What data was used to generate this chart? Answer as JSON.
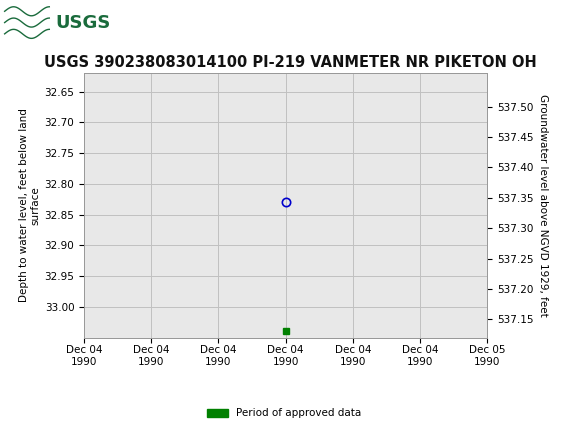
{
  "title": "USGS 390238083014100 PI-219 VANMETER NR PIKETON OH",
  "ylabel_left": "Depth to water level, feet below land\nsurface",
  "ylabel_right": "Groundwater level above NGVD 1929, feet",
  "ylim_left": [
    33.05,
    32.62
  ],
  "ylim_right": [
    537.12,
    537.555
  ],
  "yticks_left": [
    32.65,
    32.7,
    32.75,
    32.8,
    32.85,
    32.9,
    32.95,
    33.0
  ],
  "yticks_right": [
    537.15,
    537.2,
    537.25,
    537.3,
    537.35,
    537.4,
    537.45,
    537.5
  ],
  "ytick_labels_left": [
    "32.65",
    "32.70",
    "32.75",
    "32.80",
    "32.85",
    "32.90",
    "32.95",
    "33.00"
  ],
  "ytick_labels_right": [
    "537.15",
    "537.20",
    "537.25",
    "537.30",
    "537.35",
    "537.40",
    "537.45",
    "537.50"
  ],
  "xlim": [
    0,
    6
  ],
  "xtick_positions": [
    0,
    1,
    2,
    3,
    4,
    5,
    6
  ],
  "xtick_labels": [
    "Dec 04\n1990",
    "Dec 04\n1990",
    "Dec 04\n1990",
    "Dec 04\n1990",
    "Dec 04\n1990",
    "Dec 04\n1990",
    "Dec 05\n1990"
  ],
  "data_point_x": 3,
  "data_point_y": 32.83,
  "data_point_color": "#0000cc",
  "data_point_marker": "o",
  "data_point_facecolor": "none",
  "green_square_x": 3,
  "green_square_y": 33.04,
  "green_square_color": "#008000",
  "header_color": "#1a6b3c",
  "background_color": "#ffffff",
  "plot_bg_color": "#e8e8e8",
  "grid_color": "#c0c0c0",
  "legend_label": "Period of approved data",
  "legend_color": "#008000",
  "font_family": "DejaVu Sans",
  "title_fontsize": 10.5,
  "tick_fontsize": 7.5,
  "label_fontsize": 7.5
}
